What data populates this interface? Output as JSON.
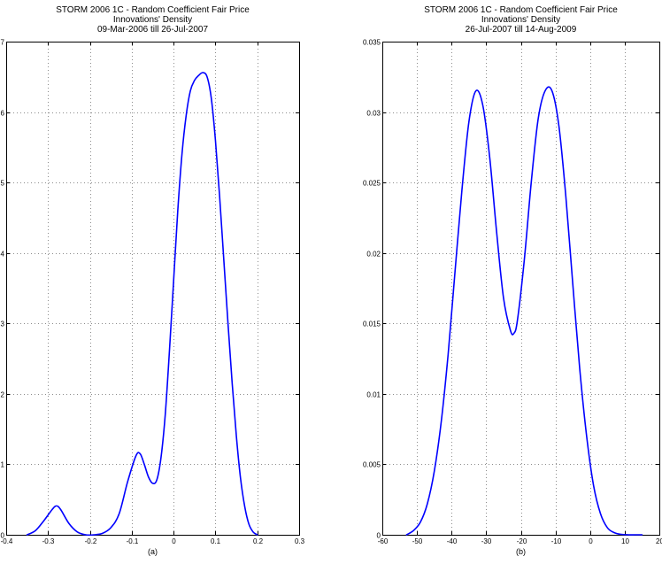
{
  "chart_data": [
    {
      "type": "line",
      "title": [
        "STORM 2006 1C - Random Coefficient Fair Price",
        "Innovations' Density",
        "09-Mar-2006 till 26-Jul-2007"
      ],
      "panel_label": "(a)",
      "xlabel": "",
      "ylabel": "",
      "xlim": [
        -0.4,
        0.3
      ],
      "ylim": [
        0,
        7
      ],
      "x_ticks": [
        -0.4,
        -0.3,
        -0.2,
        -0.1,
        0,
        0.1,
        0.2,
        0.3
      ],
      "y_ticks": [
        0,
        1,
        2,
        3,
        4,
        5,
        6,
        7
      ],
      "x_tick_labels": [
        "-0.4",
        "-0.3",
        "-0.2",
        "-0.1",
        "0",
        "0.1",
        "0.2",
        "0.3"
      ],
      "y_tick_labels": [
        "0",
        "1",
        "2",
        "3",
        "4",
        "5",
        "6",
        "7"
      ],
      "grid": true,
      "legend": "none",
      "series": [
        {
          "color": "#0000ff",
          "x": [
            -0.35,
            -0.33,
            -0.31,
            -0.29,
            -0.28,
            -0.27,
            -0.25,
            -0.23,
            -0.21,
            -0.19,
            -0.17,
            -0.15,
            -0.13,
            -0.11,
            -0.09,
            -0.08,
            -0.07,
            -0.06,
            -0.05,
            -0.04,
            -0.03,
            -0.02,
            -0.01,
            0,
            0.01,
            0.02,
            0.03,
            0.04,
            0.05,
            0.06,
            0.07,
            0.08,
            0.09,
            0.1,
            0.11,
            0.12,
            0.13,
            0.14,
            0.15,
            0.16,
            0.17,
            0.18,
            0.19,
            0.2
          ],
          "y": [
            0.0,
            0.06,
            0.2,
            0.36,
            0.41,
            0.36,
            0.16,
            0.04,
            0.0,
            0.0,
            0.02,
            0.1,
            0.3,
            0.75,
            1.12,
            1.15,
            1.0,
            0.82,
            0.73,
            0.78,
            1.1,
            1.7,
            2.6,
            3.6,
            4.6,
            5.4,
            5.95,
            6.3,
            6.45,
            6.52,
            6.56,
            6.5,
            6.2,
            5.6,
            4.8,
            3.9,
            3.0,
            2.15,
            1.4,
            0.8,
            0.4,
            0.15,
            0.04,
            0.0
          ]
        }
      ]
    },
    {
      "type": "line",
      "title": [
        "STORM 2006 1C - Random Coefficient Fair Price",
        "Innovations' Density",
        "26-Jul-2007 till 14-Aug-2009"
      ],
      "panel_label": "(b)",
      "xlabel": "",
      "ylabel": "",
      "xlim": [
        -60,
        20
      ],
      "ylim": [
        0,
        0.035
      ],
      "x_ticks": [
        -60,
        -50,
        -40,
        -30,
        -20,
        -10,
        0,
        10,
        20
      ],
      "y_ticks": [
        0,
        0.005,
        0.01,
        0.015,
        0.02,
        0.025,
        0.03,
        0.035
      ],
      "x_tick_labels": [
        "-60",
        "-50",
        "-40",
        "-30",
        "-20",
        "-10",
        "0",
        "10",
        "20"
      ],
      "y_tick_labels": [
        "0",
        "0.005",
        "0.01",
        "0.015",
        "0.02",
        "0.025",
        "0.03",
        "0.035"
      ],
      "grid": true,
      "legend": "none",
      "series": [
        {
          "color": "#0000ff",
          "x": [
            -53,
            -51,
            -49,
            -47,
            -45,
            -43,
            -41,
            -39,
            -37,
            -35,
            -33,
            -31,
            -29,
            -27,
            -25,
            -23,
            -22,
            -21,
            -19,
            -17,
            -15,
            -13,
            -11,
            -9,
            -7,
            -5,
            -3,
            -1,
            1,
            3,
            5,
            7,
            9,
            11,
            13,
            15
          ],
          "y": [
            0.0,
            0.0003,
            0.0009,
            0.0022,
            0.0045,
            0.008,
            0.0128,
            0.0187,
            0.0245,
            0.0293,
            0.0315,
            0.0305,
            0.0268,
            0.0215,
            0.0168,
            0.0145,
            0.0143,
            0.0152,
            0.0195,
            0.025,
            0.0295,
            0.0315,
            0.0315,
            0.029,
            0.024,
            0.0178,
            0.0118,
            0.007,
            0.0035,
            0.0015,
            0.0005,
            0.00015,
            3e-05,
            0.0,
            0.0,
            0.0
          ]
        }
      ]
    }
  ]
}
